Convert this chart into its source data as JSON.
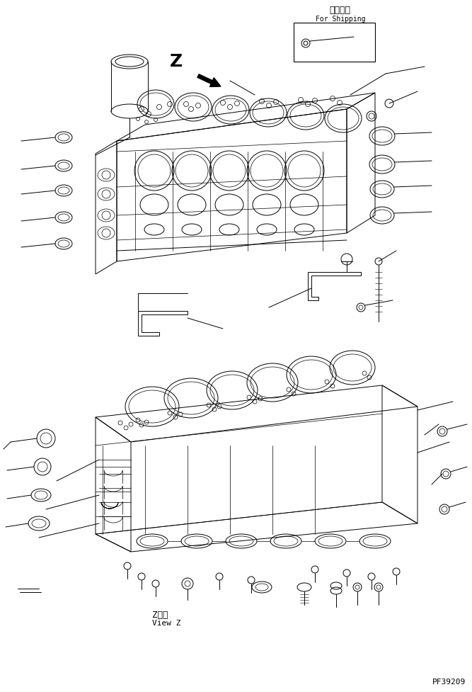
{
  "bg_color": "#ffffff",
  "line_color": "#000000",
  "title_jp": "運搜部品",
  "title_en": "For Shipping",
  "view_label_jp": "Z　視",
  "view_label_en": "View Z",
  "part_number": "PF39209",
  "z_label": "Z",
  "fig_width": 6.67,
  "fig_height": 9.78,
  "dpi": 100
}
